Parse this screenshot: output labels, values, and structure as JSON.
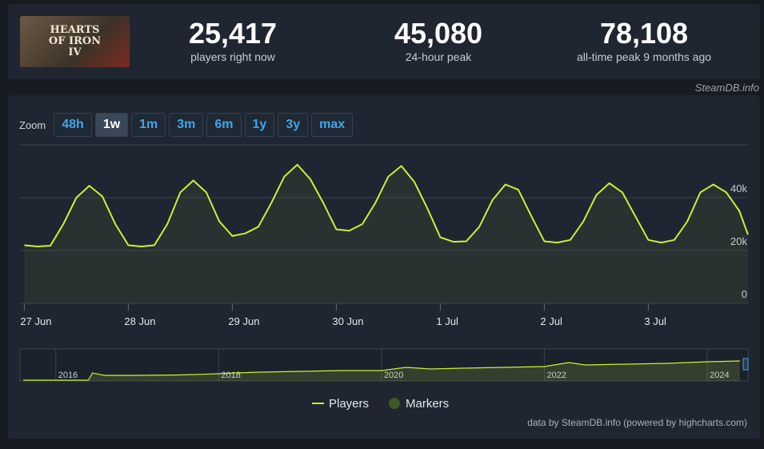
{
  "header": {
    "logo_text": "HEARTS OF IRON IV",
    "stats": [
      {
        "value": "25,417",
        "label": "players right now"
      },
      {
        "value": "45,080",
        "label": "24-hour peak"
      },
      {
        "value": "78,108",
        "label": "all-time peak 9 months ago"
      }
    ],
    "source": "SteamDB.info"
  },
  "zoom": {
    "label": "Zoom",
    "options": [
      "48h",
      "1w",
      "1m",
      "3m",
      "6m",
      "1y",
      "3y",
      "max"
    ],
    "active": 1
  },
  "chart_data": {
    "type": "line",
    "x": [
      0,
      3,
      6,
      9,
      12,
      15,
      18,
      21,
      24,
      27,
      30,
      33,
      36,
      39,
      42,
      45,
      48,
      51,
      54,
      57,
      60,
      63,
      66,
      69,
      72,
      75,
      78,
      81,
      84,
      87,
      90,
      93,
      96,
      99,
      102,
      105,
      108,
      111,
      114,
      117,
      120,
      123,
      126,
      129,
      132,
      135,
      138,
      141,
      144,
      147,
      150,
      153,
      156,
      159,
      162,
      165,
      167
    ],
    "series": [
      {
        "name": "Players",
        "color": "#c6f236",
        "values": [
          22000,
          21500,
          21800,
          30000,
          40000,
          44500,
          40500,
          30000,
          22000,
          21500,
          22000,
          30000,
          42000,
          46500,
          42000,
          31000,
          25500,
          26500,
          29000,
          38000,
          48000,
          52500,
          47000,
          38000,
          28000,
          27500,
          30000,
          38000,
          48000,
          52000,
          46000,
          36000,
          25000,
          23300,
          23500,
          29000,
          39000,
          45000,
          43000,
          33000,
          23500,
          23000,
          24000,
          31000,
          41000,
          45500,
          42000,
          33000,
          24000,
          23000,
          24000,
          31000,
          42000,
          45000,
          42000,
          35000,
          26000
        ]
      }
    ],
    "markers": {
      "name": "Markers",
      "color": "#3e5a25"
    },
    "xlim": [
      -1,
      167
    ],
    "ylim": [
      0,
      60000
    ],
    "xticks": [
      {
        "value": 0,
        "label": "27 Jun"
      },
      {
        "value": 24,
        "label": "28 Jun"
      },
      {
        "value": 48,
        "label": "29 Jun"
      },
      {
        "value": 72,
        "label": "30 Jun"
      },
      {
        "value": 96,
        "label": "1 Jul"
      },
      {
        "value": 120,
        "label": "2 Jul"
      },
      {
        "value": 144,
        "label": "3 Jul"
      }
    ],
    "yticks": [
      0,
      {
        "value": 20000,
        "label": "20k"
      },
      {
        "value": 40000,
        "label": "40k"
      }
    ],
    "grid": true
  },
  "navigator": {
    "type": "line",
    "color": "#c6f236",
    "x": [
      2015.6,
      2016.4,
      2016.45,
      2016.6,
      2017,
      2017.5,
      2018,
      2018.2,
      2018.5,
      2019,
      2019.5,
      2020,
      2020.3,
      2020.6,
      2021,
      2021.5,
      2022,
      2022.3,
      2022.5,
      2023,
      2023.5,
      2024,
      2024.4
    ],
    "values": [
      2000,
      2000,
      20000,
      14000,
      14000,
      15000,
      18000,
      20000,
      22000,
      24000,
      26000,
      26000,
      34000,
      30000,
      32000,
      34000,
      36000,
      46000,
      40000,
      42000,
      44000,
      48000,
      50000
    ],
    "xlim": [
      2015.56,
      2024.5
    ],
    "ylim": [
      0,
      80000
    ],
    "xticks": [
      2016,
      2018,
      2020,
      2022,
      2024
    ]
  },
  "credits": "data by SteamDB.info (powered by highcharts.com)"
}
